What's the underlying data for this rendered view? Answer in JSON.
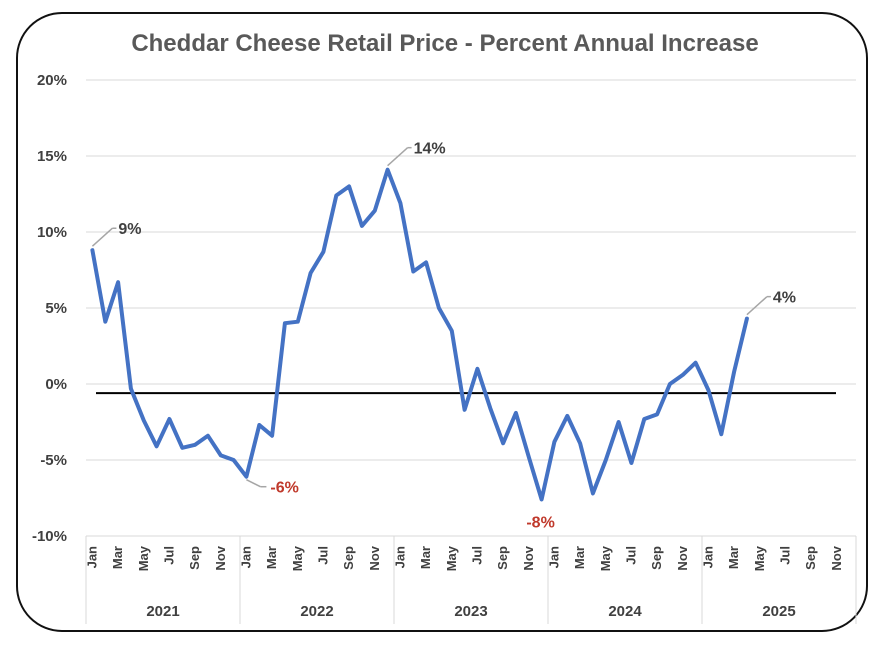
{
  "chart_data": {
    "type": "line",
    "title": "Cheddar Cheese Retail Price - Percent Annual Increase",
    "xlabel": "",
    "ylabel": "",
    "ylim": [
      -10,
      20
    ],
    "y_ticks": [
      "20%",
      "15%",
      "10%",
      "5%",
      "0%",
      "-5%",
      "-10%"
    ],
    "y_tick_values": [
      20,
      15,
      10,
      5,
      0,
      -5,
      -10
    ],
    "grid": true,
    "months": [
      "Jan",
      "Mar",
      "May",
      "Jul",
      "Sep",
      "Nov"
    ],
    "years": [
      "2021",
      "2022",
      "2023",
      "2024",
      "2025"
    ],
    "zero_line_value": -0.6,
    "line_color": "#4472C4",
    "series": [
      {
        "values": [
          8.8,
          4.1,
          6.7,
          -0.3,
          -2.4,
          -4.1,
          -2.3,
          -4.2,
          -4.0,
          -3.4,
          -4.7,
          -5.0,
          -6.1,
          -2.7,
          -3.4,
          4.0,
          4.1,
          7.3,
          8.7,
          12.4,
          13.0,
          10.4,
          11.4,
          14.1,
          11.9,
          7.4,
          8.0,
          5.0,
          3.5,
          -1.7,
          1.0,
          -1.6,
          -3.9,
          -1.9,
          -4.8,
          -7.6,
          -3.8,
          -2.1,
          -3.9,
          -7.2,
          -5.0,
          -2.5,
          -5.2,
          -2.3,
          -2.0,
          0.0,
          0.6,
          1.4,
          -0.4,
          -3.3,
          0.8,
          4.3
        ]
      }
    ],
    "annotations": [
      {
        "text": "9%",
        "index": 0,
        "color": "#404040"
      },
      {
        "text": "-6%",
        "index": 12,
        "color": "#C0392B"
      },
      {
        "text": "14%",
        "index": 23,
        "color": "#404040"
      },
      {
        "text": "-8%",
        "index": 35,
        "color": "#C0392B"
      },
      {
        "text": "4%",
        "index": 51,
        "color": "#404040"
      }
    ]
  }
}
